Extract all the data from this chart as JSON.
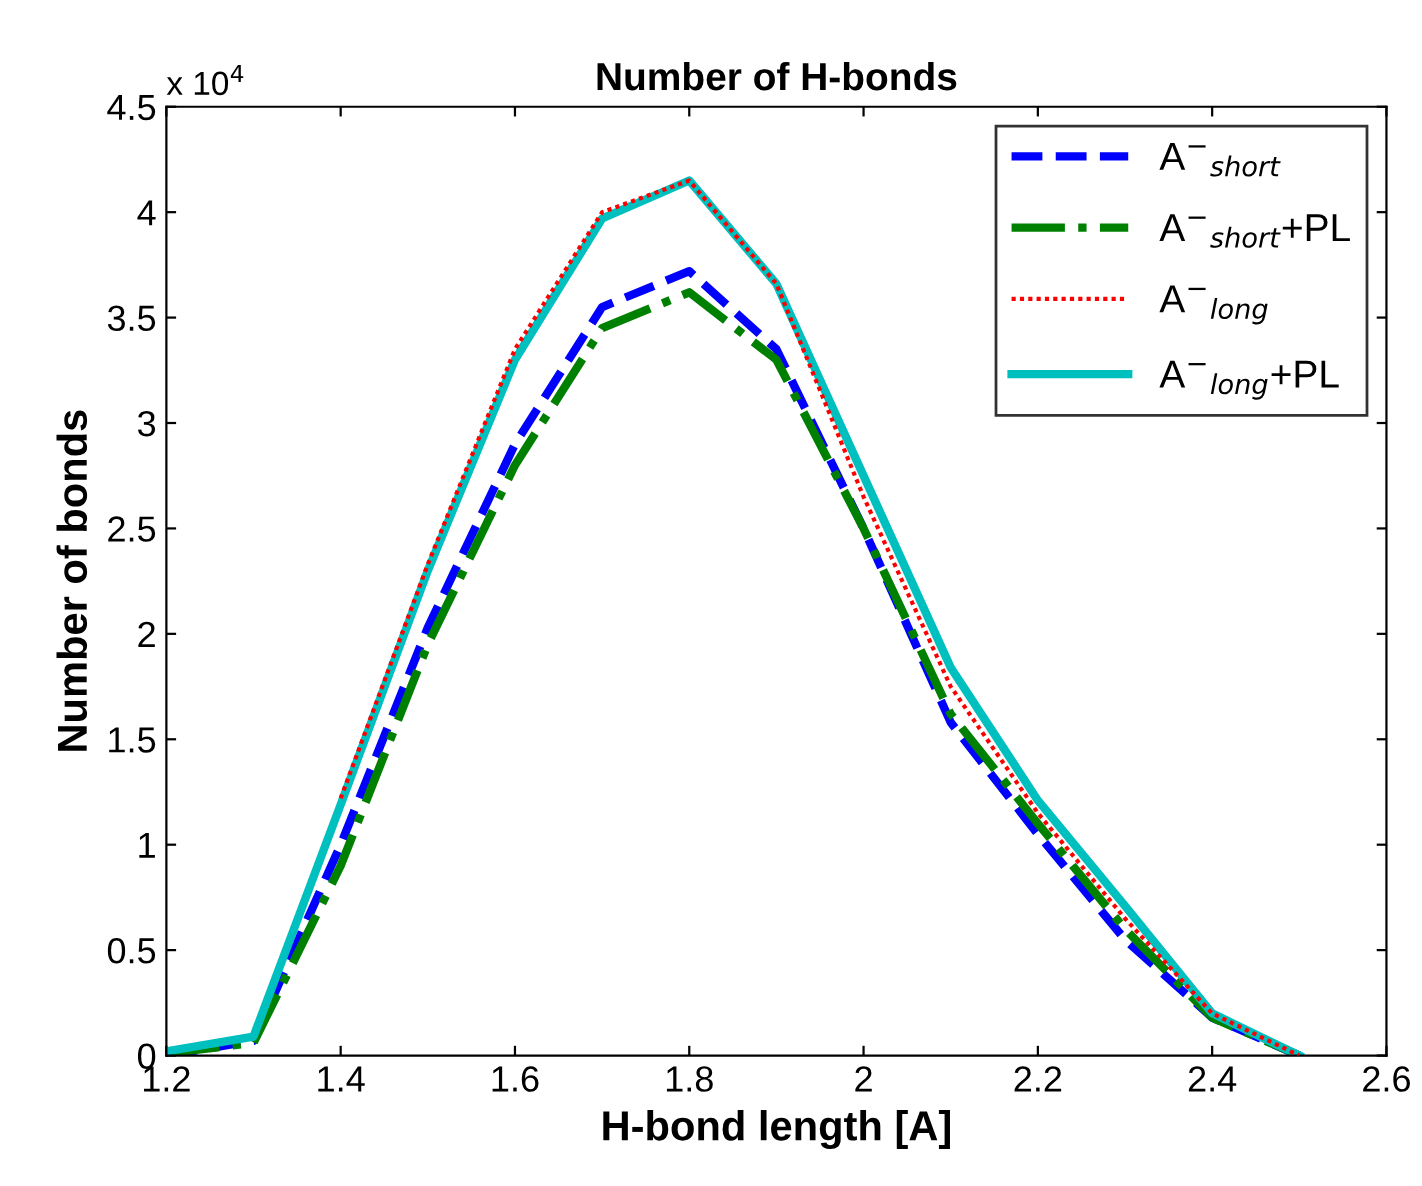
{
  "chart_data": {
    "type": "line",
    "title": "Number of H-bonds",
    "xlabel": "H-bond length [A]",
    "ylabel": "Number of bonds",
    "annotations": [
      "x 10$^{4}$"
    ],
    "x": [
      1.2,
      1.3,
      1.4,
      1.5,
      1.6,
      1.7,
      1.8,
      1.9,
      2.0,
      2.1,
      2.2,
      2.3,
      2.4,
      2.5
    ],
    "series": [
      {
        "name": "A$^{−}$$_{short}$",
        "color": "#0000ff",
        "line_style": "dashed",
        "values": [
          0,
          0.07,
          1.0,
          2.03,
          2.9,
          3.55,
          3.72,
          3.35,
          2.5,
          1.58,
          1.05,
          0.55,
          0.18,
          0
        ]
      },
      {
        "name": "A$^{−}$$_{short}$+PL",
        "color": "#008000",
        "line_style": "dashdot",
        "values": [
          0.01,
          0.06,
          0.9,
          1.95,
          2.8,
          3.45,
          3.62,
          3.3,
          2.5,
          1.62,
          1.1,
          0.6,
          0.18,
          0
        ]
      },
      {
        "name": "A$^{−}$$_{long}$",
        "color": "#ff0000",
        "line_style": "dotted",
        "values": [
          null,
          null,
          1.22,
          2.33,
          3.35,
          4.0,
          4.15,
          3.66,
          2.65,
          1.75,
          1.15,
          0.65,
          0.2,
          0
        ]
      },
      {
        "name": "A$^{−}$$_{long}$+PL",
        "color": "#00bfbf",
        "line_style": "solid",
        "values": [
          0.02,
          0.09,
          1.19,
          2.3,
          3.3,
          3.97,
          4.15,
          3.66,
          2.75,
          1.84,
          1.21,
          0.71,
          0.2,
          0
        ]
      }
    ],
    "xlim": [
      1.2,
      2.6
    ],
    "xticks": [
      1.2,
      1.4,
      1.6,
      1.8,
      2,
      2.2,
      2.4,
      2.6
    ],
    "ylim": [
      0,
      4.5
    ],
    "yticks": [
      0,
      0.5,
      1,
      1.5,
      2,
      2.5,
      3,
      3.5,
      4,
      4.5
    ],
    "legend": "top right",
    "grid": false
  }
}
